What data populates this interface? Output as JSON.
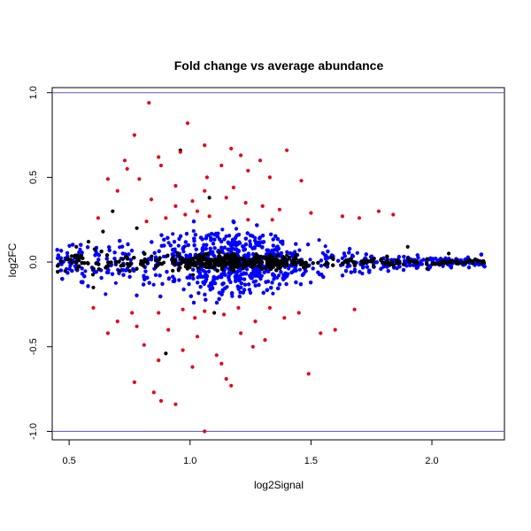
{
  "chart_data": {
    "type": "scatter",
    "title": "Fold change vs average abundance",
    "xlabel": "log2Signal",
    "ylabel": "log2FC",
    "xlim": [
      0.43,
      2.3
    ],
    "ylim": [
      -1.05,
      1.03
    ],
    "x_ticks": [
      0.5,
      1.0,
      1.5,
      2.0
    ],
    "x_tick_labels": [
      "0.5",
      "1.0",
      "1.5",
      "2.0"
    ],
    "y_ticks": [
      -1.0,
      -0.5,
      0.0,
      0.5,
      1.0
    ],
    "y_tick_labels": [
      "-1.0",
      "-0.5",
      "0.0",
      "0.5",
      "1.0"
    ],
    "grid": false,
    "legend": "none",
    "reference_lines": [
      {
        "y": 1.0,
        "color": "#5555cc"
      },
      {
        "y": -1.0,
        "color": "#5555cc"
      }
    ],
    "series_colors": {
      "not_significant": "#000000",
      "moderate": "#0000ff",
      "large": "#e8001c"
    },
    "series": [
      {
        "color": "#e8001c",
        "points": [
          [
            0.83,
            0.94
          ],
          [
            0.99,
            0.82
          ],
          [
            0.77,
            0.75
          ],
          [
            1.06,
            0.69
          ],
          [
            1.17,
            0.67
          ],
          [
            1.4,
            0.66
          ],
          [
            0.96,
            0.65
          ],
          [
            0.87,
            0.62
          ],
          [
            1.21,
            0.63
          ],
          [
            0.73,
            0.6
          ],
          [
            0.88,
            0.57
          ],
          [
            1.13,
            0.57
          ],
          [
            1.29,
            0.6
          ],
          [
            0.74,
            0.55
          ],
          [
            1.24,
            0.54
          ],
          [
            1.07,
            0.5
          ],
          [
            0.66,
            0.49
          ],
          [
            0.79,
            0.49
          ],
          [
            1.33,
            0.5
          ],
          [
            0.94,
            0.45
          ],
          [
            1.46,
            0.48
          ],
          [
            1.18,
            0.44
          ],
          [
            1.06,
            0.42
          ],
          [
            0.7,
            0.42
          ],
          [
            1.01,
            0.36
          ],
          [
            0.84,
            0.37
          ],
          [
            1.15,
            0.38
          ],
          [
            1.23,
            0.35
          ],
          [
            1.3,
            0.33
          ],
          [
            0.94,
            0.33
          ],
          [
            1.37,
            0.31
          ],
          [
            1.5,
            0.29
          ],
          [
            1.63,
            0.27
          ],
          [
            1.7,
            0.26
          ],
          [
            1.78,
            0.3
          ],
          [
            1.84,
            0.28
          ],
          [
            0.87,
            -0.3
          ],
          [
            1.02,
            -0.33
          ],
          [
            1.14,
            -0.31
          ],
          [
            1.27,
            -0.35
          ],
          [
            1.39,
            -0.33
          ],
          [
            0.7,
            -0.35
          ],
          [
            0.78,
            -0.38
          ],
          [
            0.91,
            -0.4
          ],
          [
            1.03,
            -0.44
          ],
          [
            1.21,
            -0.42
          ],
          [
            1.31,
            -0.46
          ],
          [
            0.66,
            -0.42
          ],
          [
            0.81,
            -0.49
          ],
          [
            0.97,
            -0.52
          ],
          [
            1.11,
            -0.55
          ],
          [
            1.26,
            -0.5
          ],
          [
            1.54,
            -0.42
          ],
          [
            1.6,
            -0.4
          ],
          [
            1.68,
            -0.28
          ],
          [
            0.87,
            -0.58
          ],
          [
            1.01,
            -0.62
          ],
          [
            1.13,
            -0.6
          ],
          [
            1.49,
            -0.66
          ],
          [
            1.15,
            -0.69
          ],
          [
            0.77,
            -0.71
          ],
          [
            1.17,
            -0.73
          ],
          [
            0.85,
            -0.77
          ],
          [
            0.88,
            -0.82
          ],
          [
            0.94,
            -0.84
          ],
          [
            1.06,
            -1.0
          ],
          [
            0.98,
            0.28
          ],
          [
            1.03,
            0.3
          ],
          [
            1.08,
            0.27
          ],
          [
            0.9,
            0.26
          ],
          [
            1.24,
            0.25
          ],
          [
            1.34,
            0.25
          ],
          [
            0.82,
            0.24
          ],
          [
            0.62,
            0.26
          ],
          [
            0.97,
            -0.28
          ],
          [
            1.06,
            -0.29
          ],
          [
            1.2,
            -0.27
          ],
          [
            0.76,
            -0.3
          ],
          [
            1.33,
            -0.27
          ],
          [
            0.6,
            -0.27
          ],
          [
            1.45,
            -0.3
          ]
        ]
      }
    ]
  }
}
